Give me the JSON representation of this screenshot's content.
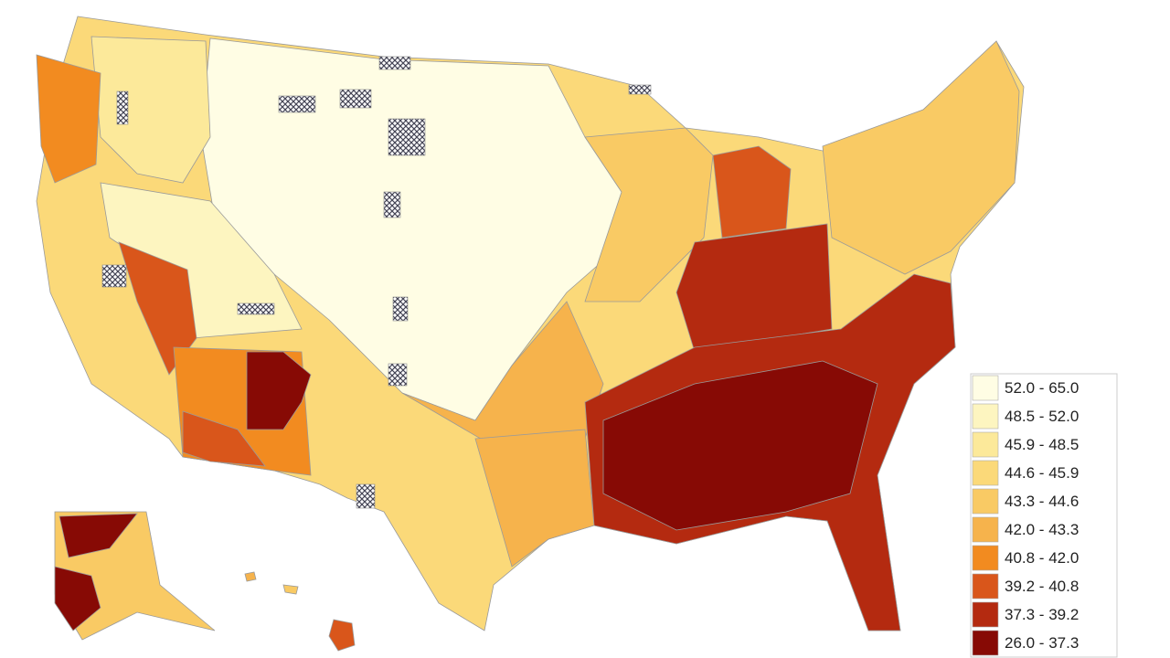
{
  "legend": {
    "items": [
      {
        "label": "52.0 - 65.0",
        "color": "#fffde4"
      },
      {
        "label": "48.5 - 52.0",
        "color": "#fdf5c0"
      },
      {
        "label": "45.9 - 48.5",
        "color": "#fce99a"
      },
      {
        "label": "44.6 - 45.9",
        "color": "#fbd979"
      },
      {
        "label": "43.3 - 44.6",
        "color": "#f9ca64"
      },
      {
        "label": "42.0 - 43.3",
        "color": "#f6b34c"
      },
      {
        "label": "40.8 - 42.0",
        "color": "#f28b20"
      },
      {
        "label": "39.2 - 40.8",
        "color": "#d9561b"
      },
      {
        "label": "37.3 - 39.2",
        "color": "#b42a10"
      },
      {
        "label": "26.0 - 37.3",
        "color": "#870a05"
      }
    ]
  }
}
